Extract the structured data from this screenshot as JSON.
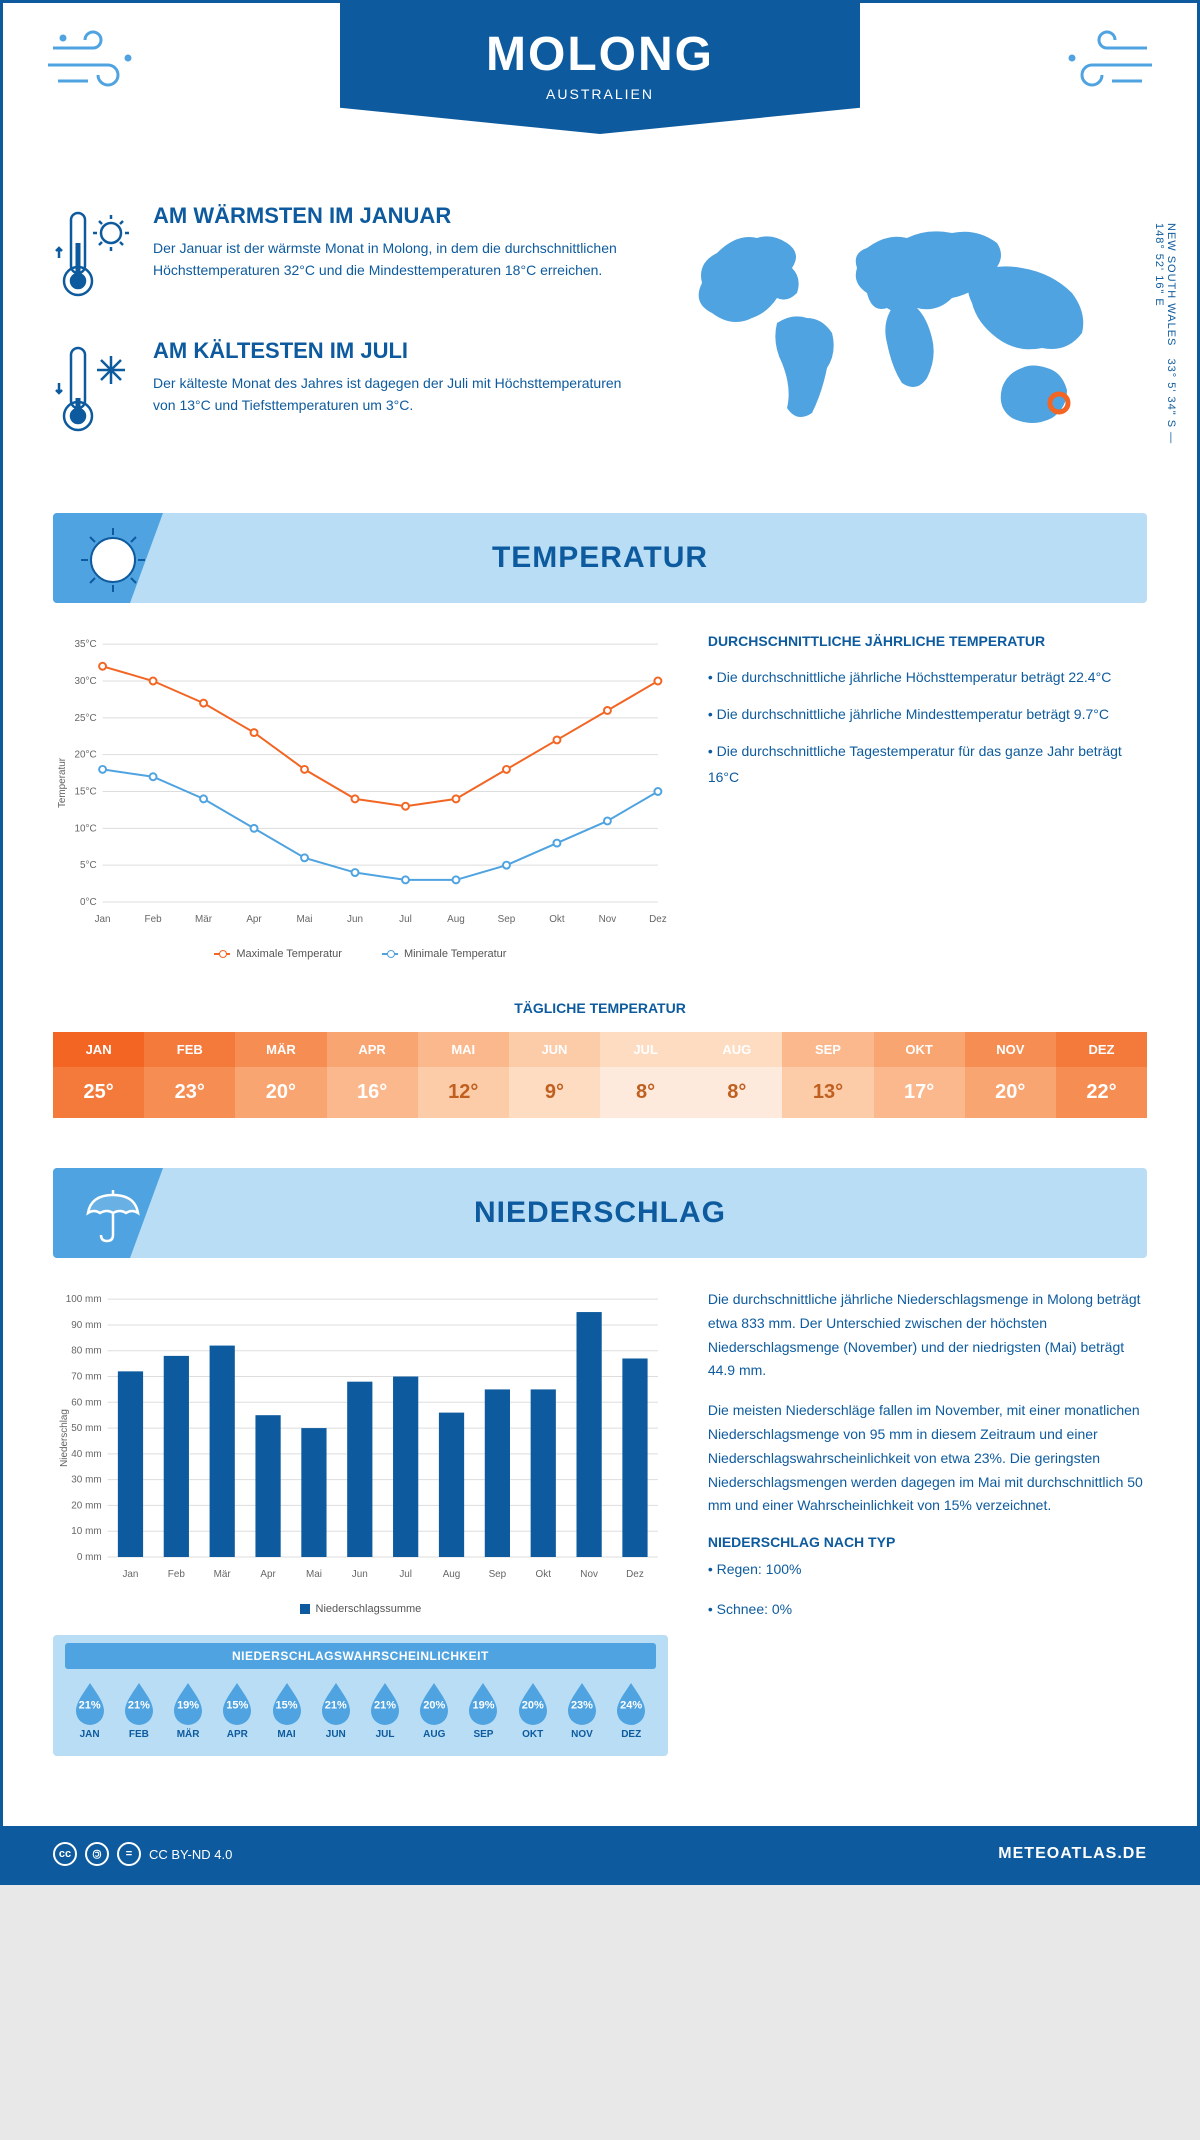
{
  "header": {
    "title": "MOLONG",
    "subtitle": "AUSTRALIEN"
  },
  "coords": {
    "lat": "33° 5' 34\" S — 148° 52' 16\" E",
    "region": "NEW SOUTH WALES"
  },
  "warmest": {
    "heading": "AM WÄRMSTEN IM JANUAR",
    "text": "Der Januar ist der wärmste Monat in Molong, in dem die durchschnittlichen Höchsttemperaturen 32°C und die Mindesttemperaturen 18°C erreichen."
  },
  "coldest": {
    "heading": "AM KÄLTESTEN IM JULI",
    "text": "Der kälteste Monat des Jahres ist dagegen der Juli mit Höchsttemperaturen von 13°C und Tiefsttemperaturen um 3°C."
  },
  "temperature": {
    "section_title": "TEMPERATUR",
    "chart": {
      "months": [
        "Jan",
        "Feb",
        "Mär",
        "Apr",
        "Mai",
        "Jun",
        "Jul",
        "Aug",
        "Sep",
        "Okt",
        "Nov",
        "Dez"
      ],
      "max": [
        32,
        30,
        27,
        23,
        18,
        14,
        13,
        14,
        18,
        22,
        26,
        30
      ],
      "min": [
        18,
        17,
        14,
        10,
        6,
        4,
        3,
        3,
        5,
        8,
        11,
        15
      ],
      "ylim": [
        0,
        35
      ],
      "ytick_step": 5,
      "max_color": "#f26522",
      "min_color": "#4fa3e0",
      "ylabel": "Temperatur",
      "legend_max": "Maximale Temperatur",
      "legend_min": "Minimale Temperatur"
    },
    "info": {
      "heading": "DURCHSCHNITTLICHE JÄHRLICHE TEMPERATUR",
      "b1": "• Die durchschnittliche jährliche Höchsttemperatur beträgt 22.4°C",
      "b2": "• Die durchschnittliche jährliche Mindesttemperatur beträgt 9.7°C",
      "b3": "• Die durchschnittliche Tagestemperatur für das ganze Jahr beträgt 16°C"
    },
    "daily": {
      "heading": "TÄGLICHE TEMPERATUR",
      "months": [
        "JAN",
        "FEB",
        "MÄR",
        "APR",
        "MAI",
        "JUN",
        "JUL",
        "AUG",
        "SEP",
        "OKT",
        "NOV",
        "DEZ"
      ],
      "values": [
        "25°",
        "23°",
        "20°",
        "16°",
        "12°",
        "9°",
        "8°",
        "8°",
        "13°",
        "17°",
        "20°",
        "22°"
      ],
      "header_colors": [
        "#f26522",
        "#f47a3c",
        "#f68d53",
        "#f9a571",
        "#fbb88c",
        "#fccba8",
        "#fddcc2",
        "#fddcc2",
        "#fbb88c",
        "#f9a571",
        "#f68d53",
        "#f47a3c"
      ],
      "val_colors": [
        "#f47a3c",
        "#f68d53",
        "#f9a571",
        "#fbb88c",
        "#fccba8",
        "#fddcc2",
        "#feeadd",
        "#feeadd",
        "#fccba8",
        "#fbb88c",
        "#f9a571",
        "#f68d53"
      ]
    }
  },
  "precip": {
    "section_title": "NIEDERSCHLAG",
    "chart": {
      "months": [
        "Jan",
        "Feb",
        "Mär",
        "Apr",
        "Mai",
        "Jun",
        "Jul",
        "Aug",
        "Sep",
        "Okt",
        "Nov",
        "Dez"
      ],
      "values": [
        72,
        78,
        82,
        55,
        50,
        68,
        70,
        56,
        65,
        65,
        95,
        77
      ],
      "ylim": [
        0,
        100
      ],
      "ytick_step": 10,
      "bar_color": "#0d5b9e",
      "ylabel": "Niederschlag",
      "legend": "Niederschlagssumme"
    },
    "text1": "Die durchschnittliche jährliche Niederschlagsmenge in Molong beträgt etwa 833 mm. Der Unterschied zwischen der höchsten Niederschlagsmenge (November) und der niedrigsten (Mai) beträgt 44.9 mm.",
    "text2": "Die meisten Niederschläge fallen im November, mit einer monatlichen Niederschlagsmenge von 95 mm in diesem Zeitraum und einer Niederschlagswahrscheinlichkeit von etwa 23%. Die geringsten Niederschlagsmengen werden dagegen im Mai mit durchschnittlich 50 mm und einer Wahrscheinlichkeit von 15% verzeichnet.",
    "type_heading": "NIEDERSCHLAG NACH TYP",
    "type1": "• Regen: 100%",
    "type2": "• Schnee: 0%",
    "prob": {
      "heading": "NIEDERSCHLAGSWAHRSCHEINLICHKEIT",
      "months": [
        "JAN",
        "FEB",
        "MÄR",
        "APR",
        "MAI",
        "JUN",
        "JUL",
        "AUG",
        "SEP",
        "OKT",
        "NOV",
        "DEZ"
      ],
      "values": [
        "21%",
        "21%",
        "19%",
        "15%",
        "15%",
        "21%",
        "21%",
        "20%",
        "19%",
        "20%",
        "23%",
        "24%"
      ],
      "drop_color": "#4fa3e0"
    }
  },
  "footer": {
    "license": "CC BY-ND 4.0",
    "site": "METEOATLAS.DE"
  }
}
